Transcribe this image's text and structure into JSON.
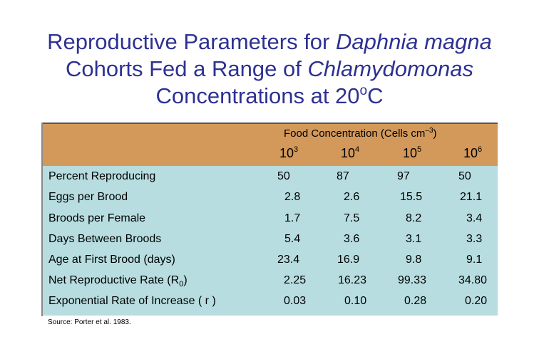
{
  "title": {
    "line1_prefix": "Reproductive Parameters for ",
    "line1_italic": "Daphnia magna",
    "line2_prefix": "Cohorts Fed a Range of ",
    "line2_italic": "Chlamydomonas",
    "line3_prefix": "Concentrations at 20",
    "line3_sup": "o",
    "line3_suffix": "C"
  },
  "header": {
    "title_prefix": "Food Concentration (Cells cm",
    "title_sup": "–3",
    "title_suffix": ")",
    "concentrations": [
      {
        "base": "10",
        "exp": "3"
      },
      {
        "base": "10",
        "exp": "4"
      },
      {
        "base": "10",
        "exp": "5"
      },
      {
        "base": "10",
        "exp": "6"
      }
    ]
  },
  "rows": [
    {
      "label": "Percent Reproducing",
      "values": [
        "50",
        "87",
        "97",
        "50"
      ]
    },
    {
      "label": "Eggs per Brood",
      "values": [
        "2.8",
        "2.6",
        "15.5",
        "21.1"
      ]
    },
    {
      "label": "Broods per Female",
      "values": [
        "1.7",
        "7.5",
        "8.2",
        "3.4"
      ]
    },
    {
      "label": "Days Between Broods",
      "values": [
        "5.4",
        "3.6",
        "3.1",
        "3.3"
      ]
    },
    {
      "label": "Age at First Brood (days)",
      "values": [
        "23.4",
        "16.9",
        "9.8",
        "9.1"
      ]
    },
    {
      "label": "Net Reproductive Rate (R",
      "label_sub": "0",
      "label_suffix": ")",
      "values": [
        "2.25",
        "16.23",
        "99.33",
        "34.80"
      ]
    },
    {
      "label": "Exponential Rate of Increase ( r )",
      "values": [
        "0.03",
        "0.10",
        "0.28",
        "0.20"
      ]
    }
  ],
  "source": "Source: Porter et al. 1983.",
  "colors": {
    "title": "#2e3192",
    "header_band": "#d3995a",
    "table_body": "#b7dde0"
  }
}
